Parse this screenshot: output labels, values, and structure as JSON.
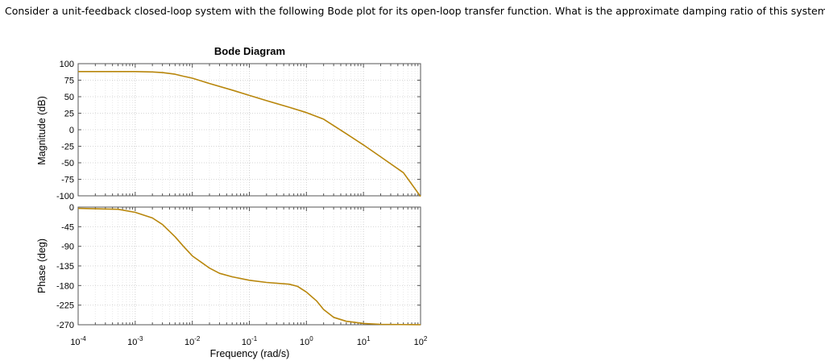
{
  "question": "Consider a unit-feedback closed-loop system with the following Bode plot for its open-loop transfer function. What is the approximate damping ratio of this system ?",
  "chart_data": {
    "type": "line",
    "title": "Bode Diagram",
    "xlabel": "Frequency (rad/s)",
    "xscale": "log",
    "xlim": [
      0.0001,
      100
    ],
    "xticks": [
      {
        "value": 0.0001,
        "base": "10",
        "exp": "-4"
      },
      {
        "value": 0.001,
        "base": "10",
        "exp": "-3"
      },
      {
        "value": 0.01,
        "base": "10",
        "exp": "-2"
      },
      {
        "value": 0.1,
        "base": "10",
        "exp": "-1"
      },
      {
        "value": 1,
        "base": "10",
        "exp": "0"
      },
      {
        "value": 10,
        "base": "10",
        "exp": "1"
      },
      {
        "value": 100,
        "base": "10",
        "exp": "2"
      }
    ],
    "grid": true,
    "line_color": "#b8860b",
    "magnitude": {
      "ylabel": "Magnitude (dB)",
      "ylim": [
        -100,
        100
      ],
      "yticks": [
        "100",
        "75",
        "50",
        "25",
        "0",
        "-25",
        "-50",
        "-75",
        "-100"
      ],
      "x": [
        0.0001,
        0.001,
        0.002,
        0.003,
        0.005,
        0.007,
        0.01,
        0.02,
        0.05,
        0.1,
        0.2,
        0.5,
        1,
        2,
        5,
        10,
        20,
        50,
        100
      ],
      "y": [
        88,
        88,
        87.5,
        86.5,
        84,
        81,
        78,
        70,
        60,
        52,
        44,
        34,
        26,
        16,
        -6,
        -23,
        -41,
        -65,
        -101
      ]
    },
    "phase": {
      "ylabel": "Phase (deg)",
      "ylim": [
        -270,
        0
      ],
      "yticks": [
        "0",
        "-45",
        "-90",
        "-135",
        "-180",
        "-225",
        "-270"
      ],
      "x": [
        0.0001,
        0.0005,
        0.001,
        0.002,
        0.003,
        0.005,
        0.007,
        0.01,
        0.02,
        0.03,
        0.05,
        0.1,
        0.2,
        0.5,
        0.7,
        1,
        1.5,
        2,
        3,
        5,
        10,
        20,
        100
      ],
      "y": [
        -3,
        -5,
        -12,
        -25,
        -40,
        -68,
        -90,
        -112,
        -140,
        -152,
        -160,
        -168,
        -173,
        -177,
        -182,
        -195,
        -215,
        -235,
        -253,
        -262,
        -267,
        -269,
        -270
      ]
    }
  }
}
